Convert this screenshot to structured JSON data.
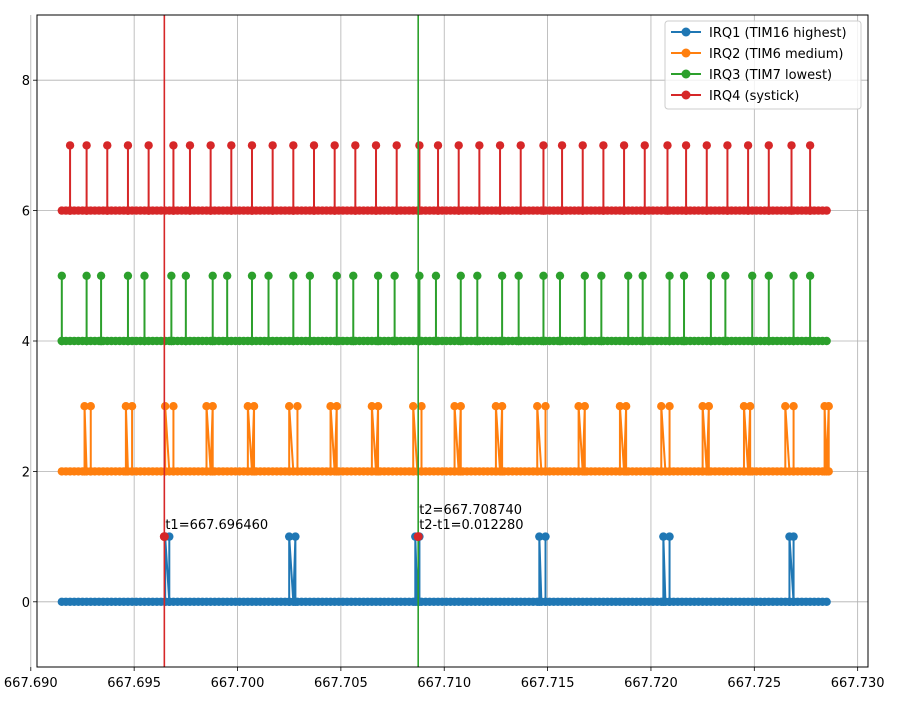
{
  "chart_data": {
    "type": "line",
    "xlim": [
      667.6903,
      667.7305
    ],
    "ylim": [
      -1,
      9
    ],
    "x_ticks": [
      667.69,
      667.695,
      667.7,
      667.705,
      667.71,
      667.715,
      667.72,
      667.725,
      667.73
    ],
    "x_tick_labels": [
      "667.690",
      "667.695",
      "667.700",
      "667.705",
      "667.710",
      "667.715",
      "667.720",
      "667.725",
      "667.730"
    ],
    "y_ticks": [
      0,
      2,
      4,
      6,
      8
    ],
    "y_tick_labels": [
      "0",
      "2",
      "4",
      "6",
      "8"
    ],
    "grid": true,
    "legend_position": "top-right",
    "series": [
      {
        "name": "IRQ1 (TIM16 highest)",
        "color": "#1f77b4",
        "baseline": 0,
        "high": 1,
        "x_start": 667.6915,
        "x_end": 667.7286,
        "events": [
          [
            667.6965,
            667.6967
          ],
          [
            667.7025,
            667.7028
          ],
          [
            667.7086,
            667.7088
          ],
          [
            667.7146,
            667.7149
          ],
          [
            667.7206,
            667.7209
          ],
          [
            667.7267,
            667.7269
          ]
        ]
      },
      {
        "name": "IRQ2 (TIM6 medium)",
        "color": "#ff7f0e",
        "baseline": 2,
        "high": 3,
        "x_start": 667.6915,
        "x_end": 667.7286,
        "events": [
          [
            667.6926,
            667.6929
          ],
          [
            667.6946,
            667.6949
          ],
          [
            667.6965,
            667.6969
          ],
          [
            667.6985,
            667.6988
          ],
          [
            667.7005,
            667.7008
          ],
          [
            667.7025,
            667.7029
          ],
          [
            667.7045,
            667.7048
          ],
          [
            667.7065,
            667.7068
          ],
          [
            667.7085,
            667.7089
          ],
          [
            667.7105,
            667.7108
          ],
          [
            667.7125,
            667.7128
          ],
          [
            667.7145,
            667.7149
          ],
          [
            667.7165,
            667.7168
          ],
          [
            667.7185,
            667.7188
          ],
          [
            667.7205,
            667.7209
          ],
          [
            667.7225,
            667.7228
          ],
          [
            667.7245,
            667.7248
          ],
          [
            667.7265,
            667.7269
          ],
          [
            667.7284,
            667.7286
          ]
        ]
      },
      {
        "name": "IRQ3 (TIM7 lowest)",
        "color": "#2ca02c",
        "baseline": 4,
        "high": 5,
        "x_start": 667.6915,
        "x_end": 667.7286,
        "spikes": [
          667.6915,
          667.6927,
          667.6934,
          667.6947,
          667.6955,
          667.6968,
          667.6975,
          667.6988,
          667.6995,
          667.7007,
          667.7015,
          667.7027,
          667.7035,
          667.7048,
          667.7056,
          667.7068,
          667.7076,
          667.7088,
          667.7096,
          667.7108,
          667.7116,
          667.7128,
          667.7136,
          667.7148,
          667.7156,
          667.7168,
          667.7176,
          667.7189,
          667.7196,
          667.7209,
          667.7216,
          667.7229,
          667.7236,
          667.7249,
          667.7257,
          667.7269,
          667.7277,
          667.7286
        ]
      },
      {
        "name": "IRQ4 (systick)",
        "color": "#d62728",
        "baseline": 6,
        "high": 7,
        "x_start": 667.6915,
        "x_end": 667.7286,
        "spikes": [
          667.6919,
          667.6927,
          667.6937,
          667.6947,
          667.6957,
          667.6969,
          667.6977,
          667.6987,
          667.6997,
          667.7007,
          667.7017,
          667.7027,
          667.7037,
          667.7047,
          667.7057,
          667.7067,
          667.7077,
          667.7088,
          667.7097,
          667.7107,
          667.7117,
          667.7127,
          667.7137,
          667.7148,
          667.7157,
          667.7167,
          667.7177,
          667.7187,
          667.7197,
          667.7208,
          667.7217,
          667.7227,
          667.7237,
          667.7247,
          667.7257,
          667.7268,
          667.7277
        ]
      }
    ],
    "cursors": [
      {
        "x": 667.69646,
        "color": "#d62728",
        "marker_y": 1,
        "label_y": 1.12,
        "lines": [
          "t1=667.696460"
        ]
      },
      {
        "x": 667.70874,
        "color": "#2ca02c",
        "marker_y": 1,
        "label_y": 1.12,
        "lines": [
          "t2=667.708740",
          "t2-t1=0.012280"
        ]
      }
    ]
  }
}
